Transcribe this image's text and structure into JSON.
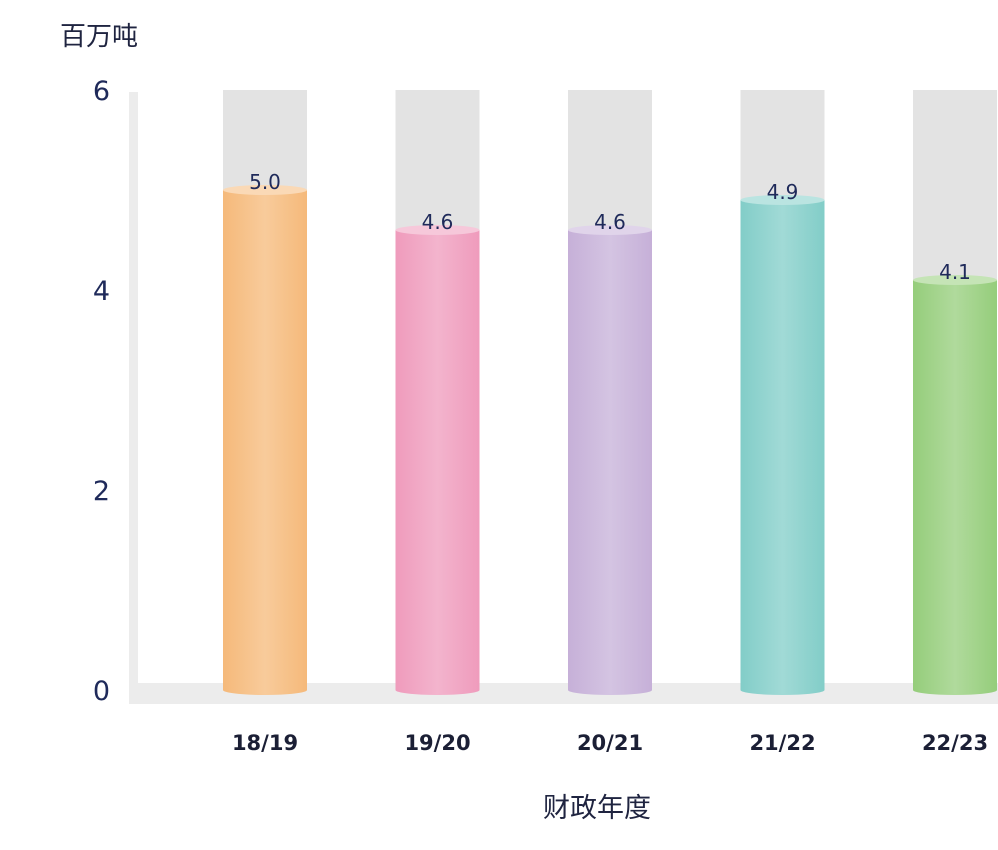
{
  "chart_data": {
    "type": "bar",
    "title": "",
    "ylabel": "百万吨",
    "xlabel": "财政年度",
    "categories": [
      "18/19",
      "19/20",
      "20/21",
      "21/22",
      "22/23"
    ],
    "values": [
      5.0,
      4.6,
      4.6,
      4.9,
      4.1
    ],
    "value_labels": [
      "5.0",
      "4.6",
      "4.6",
      "4.9",
      "4.1"
    ],
    "y_ticks": [
      "0",
      "2",
      "4",
      "6"
    ],
    "ylim": [
      0,
      6
    ],
    "grid": false,
    "legend": "none",
    "bar_style": "cylinder with grey background track",
    "colors": {
      "bars": [
        "#f5b97a",
        "#ef9bbc",
        "#c6b0d8",
        "#82cdc8",
        "#95cd7b"
      ],
      "track": "#e3e3e3",
      "axis": "#ececec",
      "tick_text": "#1f2a5a",
      "label_text": "#1b1f35"
    }
  }
}
